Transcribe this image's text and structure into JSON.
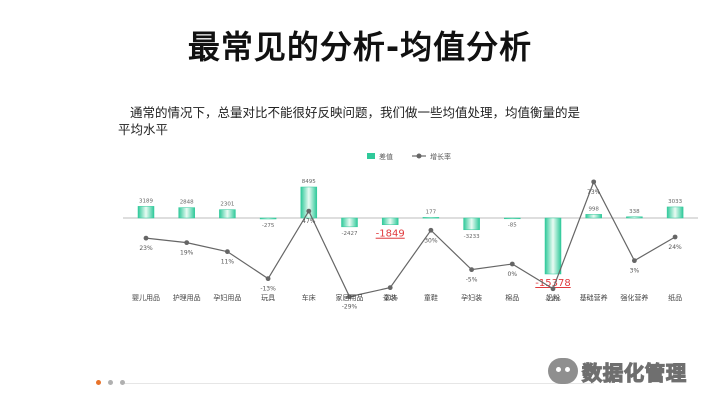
{
  "slide": {
    "title": "最常见的分析-均值分析",
    "intro": "通常的情况下，总量对比不能很好反映问题，我们做一些均值处理，均值衡量的是平均水平"
  },
  "watermark": {
    "text": "数据化管理"
  },
  "colors": {
    "bar": "#2fc99a",
    "line": "#666666",
    "negative_label": "#e0393c",
    "footer_dot_accent": "#e8732a",
    "footer_dot": "#b0b0b0"
  },
  "chart_data": {
    "type": "bar",
    "combo": "bar + line (dual axis)",
    "legend": {
      "position": "top",
      "items": [
        "差值",
        "增长率"
      ]
    },
    "categories": [
      "婴儿用品",
      "护理用品",
      "孕妇用品",
      "玩具",
      "车床",
      "家居用品",
      "童装",
      "童鞋",
      "孕妇装",
      "棉品",
      "奶粉",
      "基础营养",
      "强化营养",
      "纸品"
    ],
    "series": [
      {
        "name": "差值",
        "type": "bar",
        "values": [
          3189,
          2848,
          2301,
          -275,
          8495,
          -2427,
          -1849,
          177,
          -3233,
          -85,
          -15378,
          998,
          338,
          3033
        ],
        "labels": [
          "3189",
          "2848",
          "2301",
          "-275",
          "8495",
          "-2427",
          "-1849",
          "177",
          "-3233",
          "-85",
          "-15378",
          "998",
          "338",
          "3033"
        ]
      },
      {
        "name": "增长率",
        "type": "line",
        "values": [
          23,
          19,
          11,
          -13,
          47,
          -29,
          -21,
          30,
          -5,
          0,
          -22,
          73,
          3,
          24
        ],
        "labels": [
          "23%",
          "19%",
          "11%",
          "-13%",
          "47%",
          "-29%",
          "-21%",
          "30%",
          "-5%",
          "0%",
          "-22%",
          "73%",
          "3%",
          "24%"
        ]
      }
    ],
    "highlighted_labels": [
      "-1849",
      "-15378"
    ],
    "y_bar_range": [
      -16000,
      10000
    ],
    "y_line_range": [
      -40,
      80
    ],
    "grid": false
  }
}
